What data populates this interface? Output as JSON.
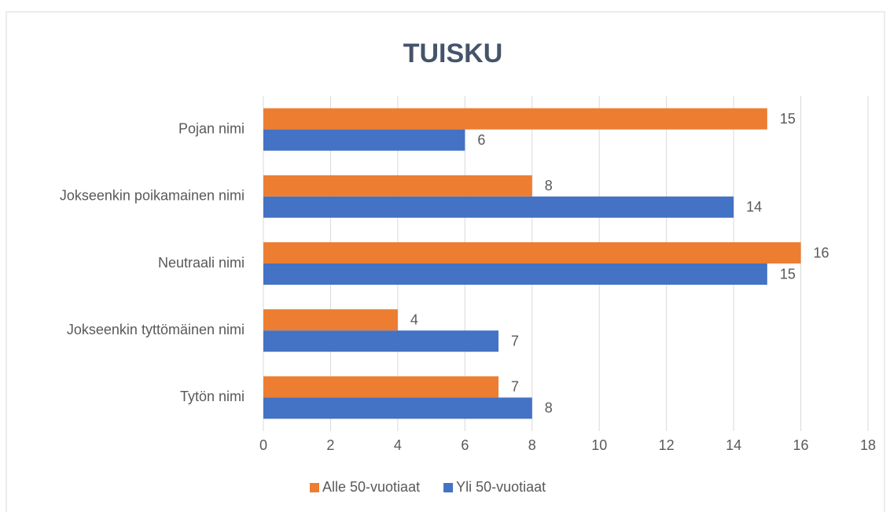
{
  "chart_data": {
    "type": "barh",
    "title": "TUISKU",
    "categories": [
      "Pojan nimi",
      "Jokseenkin poikamainen nimi",
      "Neutraali nimi",
      "Jokseenkin tyttömäinen nimi",
      "Tytön nimi"
    ],
    "series": [
      {
        "name": "Alle 50-vuotiaat",
        "color": "#ed7d31",
        "values": [
          15,
          8,
          16,
          4,
          7
        ]
      },
      {
        "name": "Yli 50-vuotiaat",
        "color": "#4472c4",
        "values": [
          6,
          14,
          15,
          7,
          8
        ]
      }
    ],
    "xlim": [
      0,
      18
    ],
    "xticks": [
      0,
      2,
      4,
      6,
      8,
      10,
      12,
      14,
      16,
      18
    ],
    "grid": true,
    "legend": "bottom"
  }
}
